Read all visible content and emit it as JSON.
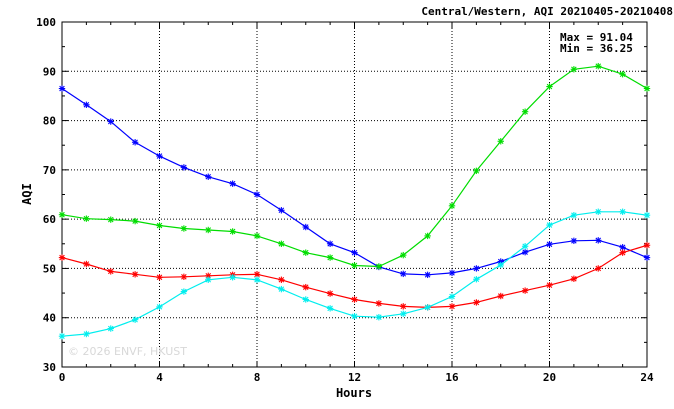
{
  "chart_data": {
    "type": "line",
    "title": "Central/Western, AQI 20210405-20210408",
    "xlabel": "Hours",
    "ylabel": "AQI",
    "xlim": [
      0,
      24
    ],
    "ylim": [
      30,
      100
    ],
    "xticks": [
      0,
      4,
      8,
      12,
      16,
      20,
      24
    ],
    "yticks": [
      30,
      40,
      50,
      60,
      70,
      80,
      90,
      100
    ],
    "grid": true,
    "max_label": "Max = 91.04",
    "min_label": "Min = 36.25",
    "watermark": "© 2026 ENVF, HKUST",
    "x": [
      0,
      1,
      2,
      3,
      4,
      5,
      6,
      7,
      8,
      9,
      10,
      11,
      12,
      13,
      14,
      15,
      16,
      17,
      18,
      19,
      20,
      21,
      22,
      23,
      24
    ],
    "series": [
      {
        "color": "#0000ff",
        "values": [
          86.5,
          83.2,
          79.8,
          75.6,
          72.8,
          70.5,
          68.6,
          67.2,
          65.0,
          61.8,
          58.4,
          55.0,
          53.2,
          50.3,
          48.9,
          48.7,
          49.1,
          50.0,
          51.4,
          53.3,
          54.9,
          55.6,
          55.7,
          54.3,
          52.2
        ]
      },
      {
        "color": "#00dd00",
        "values": [
          60.9,
          60.1,
          59.9,
          59.6,
          58.7,
          58.1,
          57.8,
          57.5,
          56.6,
          55.0,
          53.2,
          52.2,
          50.6,
          50.4,
          52.7,
          56.6,
          62.7,
          69.8,
          75.8,
          81.8,
          86.9,
          90.4,
          91.04,
          89.4,
          86.5
        ]
      },
      {
        "color": "#ff0000",
        "values": [
          52.2,
          50.9,
          49.4,
          48.8,
          48.2,
          48.3,
          48.5,
          48.7,
          48.8,
          47.7,
          46.2,
          44.9,
          43.7,
          42.9,
          42.3,
          42.1,
          42.3,
          43.1,
          44.4,
          45.5,
          46.6,
          47.9,
          50.0,
          53.2,
          54.7
        ]
      },
      {
        "color": "#00eeee",
        "values": [
          36.25,
          36.7,
          37.8,
          39.6,
          42.2,
          45.3,
          47.7,
          48.2,
          47.7,
          45.8,
          43.7,
          41.9,
          40.3,
          40.1,
          40.8,
          42.1,
          44.3,
          47.8,
          50.7,
          54.5,
          58.8,
          60.8,
          61.5,
          61.5,
          60.8
        ]
      }
    ]
  }
}
